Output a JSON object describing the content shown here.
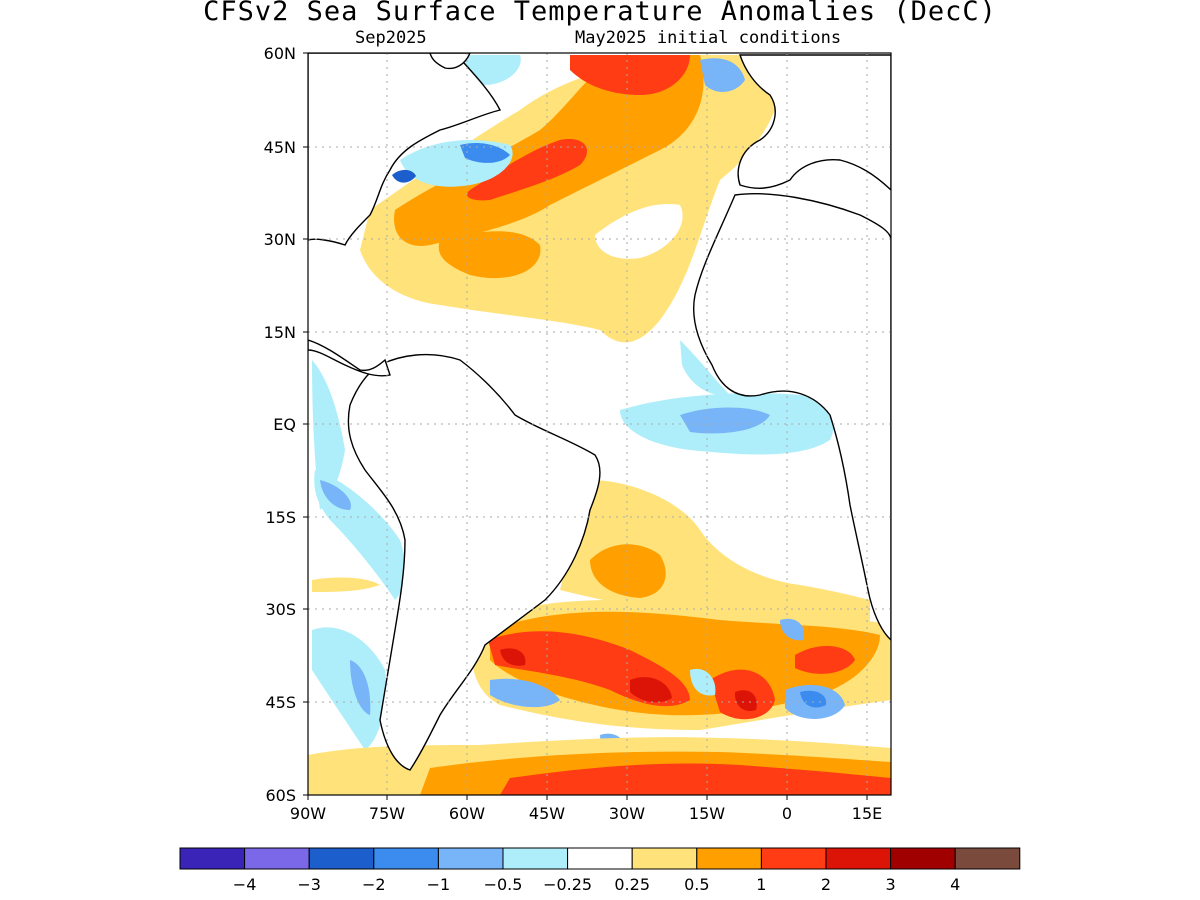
{
  "title": "CFSv2 Sea Surface Temperature Anomalies (DecC)",
  "subtitle_left": "Sep2025",
  "subtitle_right": "May2025 initial conditions",
  "axes": {
    "lat_labels": [
      "60N",
      "45N",
      "30N",
      "15N",
      "EQ",
      "15S",
      "30S",
      "45S",
      "60S"
    ],
    "lon_labels": [
      "90W",
      "75W",
      "60W",
      "45W",
      "30W",
      "15W",
      "0",
      "15E"
    ]
  },
  "colorbar": {
    "colors": [
      "#3a24b8",
      "#7b68e8",
      "#1c5fcc",
      "#3c8cf0",
      "#78b4f8",
      "#aeeefa",
      "#ffffff",
      "#ffe27a",
      "#ffa000",
      "#ff3c14",
      "#dc1408",
      "#a00000",
      "#7a4a3c"
    ],
    "labels": [
      "−4",
      "−3",
      "−2",
      "−1",
      "−0.5",
      "−0.25",
      "0.25",
      "0.5",
      "1",
      "2",
      "3",
      "4"
    ]
  },
  "colors": {
    "land": "#ffffff",
    "coast": "#000000",
    "grid": "#aaaaaa"
  }
}
